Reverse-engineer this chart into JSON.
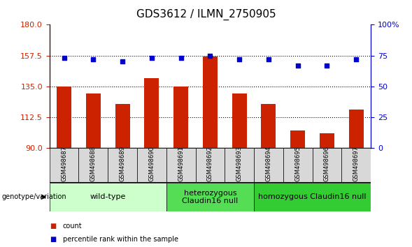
{
  "title": "GDS3612 / ILMN_2750905",
  "samples": [
    "GSM498687",
    "GSM498688",
    "GSM498689",
    "GSM498690",
    "GSM498691",
    "GSM498692",
    "GSM498693",
    "GSM498694",
    "GSM498695",
    "GSM498696",
    "GSM498697"
  ],
  "bar_values": [
    135,
    130,
    122,
    141,
    135,
    157,
    130,
    122,
    103,
    101,
    118
  ],
  "dot_values": [
    73,
    72,
    70.5,
    73,
    73,
    75,
    72,
    72,
    67,
    67,
    72
  ],
  "ylim_left": [
    90,
    180
  ],
  "ylim_right": [
    0,
    100
  ],
  "yticks_left": [
    90,
    112.5,
    135,
    157.5,
    180
  ],
  "yticks_right": [
    0,
    25,
    50,
    75,
    100
  ],
  "groups": [
    {
      "label": "wild-type",
      "start": 0,
      "end": 3,
      "color": "#ccffcc"
    },
    {
      "label": "heterozygous\nClaudin16 null",
      "start": 4,
      "end": 6,
      "color": "#55dd55"
    },
    {
      "label": "homozygous Claudin16 null",
      "start": 7,
      "end": 10,
      "color": "#33cc33"
    }
  ],
  "bar_color": "#cc2200",
  "dot_color": "#0000cc",
  "tick_color_left": "#cc2200",
  "tick_color_right": "#0000cc",
  "sample_box_color": "#d8d8d8",
  "genotype_label": "genotype/variation",
  "legend_count": "count",
  "legend_pct": "percentile rank within the sample",
  "title_fontsize": 11,
  "axis_fontsize": 8,
  "sample_fontsize": 6,
  "group_fontsize": 8,
  "legend_fontsize": 8
}
